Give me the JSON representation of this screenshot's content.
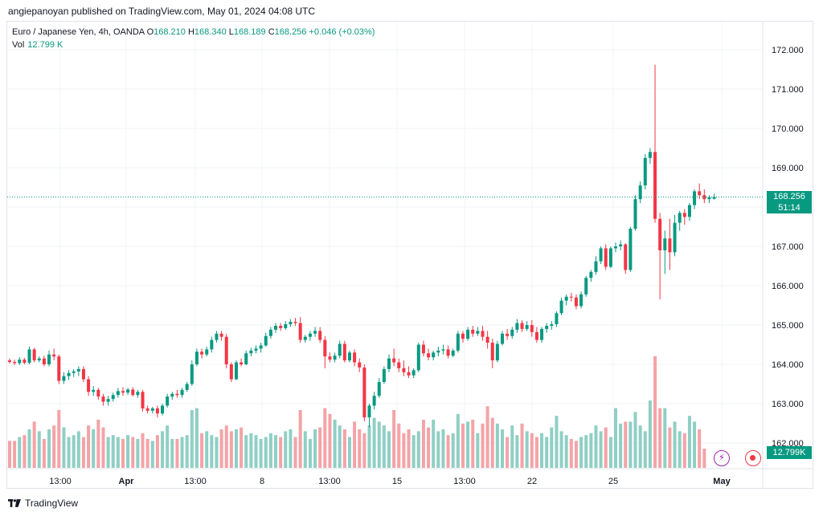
{
  "header": {
    "published": "angiepanoyan published on TradingView.com, May 01, 2024 04:08 UTC"
  },
  "legend": {
    "symbol": "Euro / Japanese Yen, 4h, OANDA",
    "o_label": "O",
    "o": "168.210",
    "h_label": "H",
    "h": "168.340",
    "l_label": "L",
    "l": "168.189",
    "c_label": "C",
    "c": "168.256",
    "change": "+0.046 (+0.03%)",
    "vol_label": "Vol",
    "vol": "12.799 K"
  },
  "price_axis": {
    "labels": [
      "172.000",
      "171.000",
      "170.000",
      "169.000",
      "168.000",
      "167.000",
      "166.000",
      "165.000",
      "164.000",
      "163.000",
      "162.000"
    ],
    "values": [
      172,
      171,
      170,
      169,
      168,
      167,
      166,
      165,
      164,
      163,
      162
    ]
  },
  "time_axis": {
    "labels": [
      "13:00",
      "Apr",
      "13:00",
      "8",
      "13:00",
      "15",
      "13:00",
      "22",
      "25",
      "May"
    ]
  },
  "badges": {
    "price": "168.256",
    "countdown": "51:14",
    "volume": "12.799K"
  },
  "colors": {
    "up": "#089981",
    "down": "#f23645",
    "vol_up": "#8fcfc4",
    "vol_down": "#f4a3a7",
    "grid": "#f0f3fa"
  },
  "footer": {
    "brand": "TradingView"
  },
  "icons": {
    "lightning": "lightning-icon",
    "record": "record-icon",
    "logo": "tradingview-logo-icon"
  },
  "chart_data": {
    "type": "candlestick",
    "title": "Euro / Japanese Yen, 4h, OANDA",
    "ylim": [
      161.6,
      172.5
    ],
    "last_price": 168.256,
    "candles": [
      [
        164.1,
        164.15,
        164.02,
        164.06
      ],
      [
        164.06,
        164.12,
        163.98,
        164.03
      ],
      [
        164.03,
        164.18,
        163.98,
        164.12
      ],
      [
        164.12,
        164.16,
        164.0,
        164.04
      ],
      [
        164.04,
        164.45,
        164.0,
        164.38
      ],
      [
        164.38,
        164.42,
        164.05,
        164.1
      ],
      [
        164.1,
        164.2,
        164.05,
        164.15
      ],
      [
        164.15,
        164.22,
        163.95,
        164.0
      ],
      [
        164.0,
        164.35,
        163.95,
        164.25
      ],
      [
        164.25,
        164.4,
        164.1,
        164.2
      ],
      [
        164.2,
        164.25,
        163.5,
        163.58
      ],
      [
        163.58,
        163.8,
        163.5,
        163.7
      ],
      [
        163.7,
        163.85,
        163.6,
        163.78
      ],
      [
        163.78,
        163.88,
        163.68,
        163.82
      ],
      [
        163.82,
        163.95,
        163.7,
        163.88
      ],
      [
        163.88,
        163.95,
        163.55,
        163.62
      ],
      [
        163.62,
        163.7,
        163.2,
        163.3
      ],
      [
        163.3,
        163.45,
        163.2,
        163.35
      ],
      [
        163.35,
        163.4,
        163.1,
        163.18
      ],
      [
        163.18,
        163.25,
        162.95,
        163.05
      ],
      [
        163.05,
        163.2,
        162.95,
        163.12
      ],
      [
        163.12,
        163.28,
        163.05,
        163.22
      ],
      [
        163.22,
        163.4,
        163.15,
        163.32
      ],
      [
        163.32,
        163.42,
        163.2,
        163.28
      ],
      [
        163.28,
        163.4,
        163.22,
        163.36
      ],
      [
        163.36,
        163.42,
        163.18,
        163.22
      ],
      [
        163.22,
        163.35,
        163.15,
        163.3
      ],
      [
        163.3,
        163.35,
        162.8,
        162.88
      ],
      [
        162.88,
        162.95,
        162.75,
        162.82
      ],
      [
        162.82,
        162.92,
        162.75,
        162.88
      ],
      [
        162.88,
        162.95,
        162.65,
        162.75
      ],
      [
        162.75,
        163.0,
        162.7,
        162.95
      ],
      [
        162.95,
        163.25,
        162.9,
        163.18
      ],
      [
        163.18,
        163.3,
        163.1,
        163.25
      ],
      [
        163.25,
        163.35,
        163.15,
        163.22
      ],
      [
        163.22,
        163.4,
        163.15,
        163.35
      ],
      [
        163.35,
        163.55,
        163.3,
        163.5
      ],
      [
        163.5,
        164.1,
        163.45,
        164.0
      ],
      [
        164.0,
        164.4,
        163.95,
        164.32
      ],
      [
        164.32,
        164.4,
        164.15,
        164.25
      ],
      [
        164.25,
        164.45,
        164.2,
        164.38
      ],
      [
        164.38,
        164.7,
        164.3,
        164.62
      ],
      [
        164.62,
        164.85,
        164.55,
        164.78
      ],
      [
        164.78,
        164.85,
        164.6,
        164.7
      ],
      [
        164.7,
        164.78,
        163.9,
        164.0
      ],
      [
        164.0,
        164.05,
        163.55,
        163.62
      ],
      [
        163.62,
        164.1,
        163.6,
        164.05
      ],
      [
        164.05,
        164.15,
        163.95,
        164.0
      ],
      [
        164.0,
        164.35,
        163.98,
        164.28
      ],
      [
        164.28,
        164.42,
        164.2,
        164.35
      ],
      [
        164.35,
        164.48,
        164.28,
        164.4
      ],
      [
        164.4,
        164.55,
        164.3,
        164.48
      ],
      [
        164.48,
        164.8,
        164.45,
        164.72
      ],
      [
        164.72,
        164.95,
        164.65,
        164.88
      ],
      [
        164.88,
        165.05,
        164.8,
        164.98
      ],
      [
        164.98,
        165.05,
        164.85,
        164.92
      ],
      [
        164.92,
        165.1,
        164.88,
        165.02
      ],
      [
        165.02,
        165.15,
        164.95,
        165.08
      ],
      [
        165.08,
        165.18,
        164.98,
        165.05
      ],
      [
        165.05,
        165.2,
        164.55,
        164.62
      ],
      [
        164.62,
        164.75,
        164.55,
        164.7
      ],
      [
        164.7,
        164.85,
        164.6,
        164.78
      ],
      [
        164.78,
        164.95,
        164.7,
        164.85
      ],
      [
        164.85,
        164.95,
        164.55,
        164.62
      ],
      [
        164.62,
        164.72,
        163.9,
        164.2
      ],
      [
        164.2,
        164.3,
        164.05,
        164.12
      ],
      [
        164.12,
        164.3,
        164.05,
        164.22
      ],
      [
        164.22,
        164.6,
        164.15,
        164.52
      ],
      [
        164.52,
        164.6,
        164.05,
        164.1
      ],
      [
        164.1,
        164.35,
        164.05,
        164.3
      ],
      [
        164.3,
        164.38,
        163.95,
        164.05
      ],
      [
        164.05,
        164.15,
        163.8,
        163.92
      ],
      [
        163.92,
        164.0,
        162.55,
        162.65
      ],
      [
        162.65,
        163.0,
        162.4,
        162.95
      ],
      [
        162.95,
        163.3,
        162.85,
        163.2
      ],
      [
        163.2,
        163.65,
        163.15,
        163.55
      ],
      [
        163.55,
        163.95,
        163.5,
        163.88
      ],
      [
        163.88,
        164.25,
        163.8,
        164.15
      ],
      [
        164.15,
        164.4,
        163.95,
        164.05
      ],
      [
        164.05,
        164.15,
        163.8,
        163.9
      ],
      [
        163.9,
        164.1,
        163.7,
        163.8
      ],
      [
        163.8,
        163.95,
        163.65,
        163.72
      ],
      [
        163.72,
        163.9,
        163.65,
        163.85
      ],
      [
        163.85,
        164.55,
        163.8,
        164.5
      ],
      [
        164.5,
        164.6,
        164.2,
        164.28
      ],
      [
        164.28,
        164.4,
        164.1,
        164.18
      ],
      [
        164.18,
        164.35,
        164.1,
        164.3
      ],
      [
        164.3,
        164.45,
        164.2,
        164.35
      ],
      [
        164.35,
        164.5,
        164.25,
        164.38
      ],
      [
        164.38,
        164.48,
        164.15,
        164.22
      ],
      [
        164.22,
        164.4,
        164.18,
        164.35
      ],
      [
        164.35,
        164.85,
        164.3,
        164.78
      ],
      [
        164.78,
        164.85,
        164.55,
        164.65
      ],
      [
        164.65,
        164.95,
        164.6,
        164.88
      ],
      [
        164.88,
        164.98,
        164.7,
        164.78
      ],
      [
        164.78,
        164.95,
        164.72,
        164.85
      ],
      [
        164.85,
        164.98,
        164.6,
        164.7
      ],
      [
        164.7,
        164.85,
        164.4,
        164.55
      ],
      [
        164.55,
        164.65,
        163.9,
        164.1
      ],
      [
        164.1,
        164.6,
        164.05,
        164.52
      ],
      [
        164.52,
        164.85,
        164.48,
        164.78
      ],
      [
        164.78,
        164.9,
        164.62,
        164.72
      ],
      [
        164.72,
        164.95,
        164.65,
        164.88
      ],
      [
        164.88,
        165.15,
        164.8,
        165.05
      ],
      [
        165.05,
        165.12,
        164.82,
        164.9
      ],
      [
        164.9,
        165.1,
        164.85,
        165.0
      ],
      [
        165.0,
        165.12,
        164.7,
        164.82
      ],
      [
        164.82,
        164.95,
        164.55,
        164.62
      ],
      [
        164.62,
        164.95,
        164.55,
        164.9
      ],
      [
        164.9,
        165.05,
        164.8,
        164.98
      ],
      [
        164.98,
        165.1,
        164.88,
        165.02
      ],
      [
        165.02,
        165.35,
        164.95,
        165.3
      ],
      [
        165.3,
        165.7,
        165.25,
        165.62
      ],
      [
        165.62,
        165.78,
        165.5,
        165.72
      ],
      [
        165.72,
        165.82,
        165.6,
        165.7
      ],
      [
        165.7,
        165.78,
        165.4,
        165.48
      ],
      [
        165.48,
        165.85,
        165.42,
        165.78
      ],
      [
        165.78,
        166.25,
        165.72,
        166.2
      ],
      [
        166.2,
        166.4,
        166.1,
        166.35
      ],
      [
        166.35,
        166.75,
        166.28,
        166.62
      ],
      [
        166.62,
        167.0,
        166.55,
        166.95
      ],
      [
        166.95,
        167.05,
        166.4,
        166.48
      ],
      [
        166.48,
        167.0,
        166.45,
        166.95
      ],
      [
        166.95,
        167.1,
        166.85,
        167.0
      ],
      [
        167.0,
        167.15,
        166.9,
        167.05
      ],
      [
        167.05,
        167.08,
        166.3,
        166.4
      ],
      [
        166.4,
        167.5,
        166.35,
        167.45
      ],
      [
        167.45,
        168.3,
        167.4,
        168.2
      ],
      [
        168.2,
        168.65,
        168.1,
        168.55
      ],
      [
        168.55,
        169.35,
        168.45,
        169.25
      ],
      [
        169.25,
        169.5,
        169.1,
        169.4
      ],
      [
        169.4,
        171.62,
        167.6,
        167.7
      ],
      [
        167.7,
        167.85,
        165.65,
        166.9
      ],
      [
        166.9,
        167.4,
        166.3,
        167.2
      ],
      [
        167.2,
        167.7,
        166.4,
        166.85
      ],
      [
        166.85,
        167.8,
        166.75,
        167.6
      ],
      [
        167.6,
        167.9,
        167.4,
        167.85
      ],
      [
        167.85,
        167.95,
        167.55,
        167.75
      ],
      [
        167.75,
        168.1,
        167.65,
        168.05
      ],
      [
        168.05,
        168.45,
        167.95,
        168.4
      ],
      [
        168.4,
        168.6,
        168.2,
        168.3
      ],
      [
        168.3,
        168.45,
        168.1,
        168.2
      ],
      [
        168.2,
        168.3,
        168.1,
        168.25
      ],
      [
        168.21,
        168.34,
        168.19,
        168.256
      ]
    ],
    "volume": [
      14,
      14,
      16,
      17,
      20,
      24,
      19,
      15,
      20,
      22,
      30,
      21,
      16,
      17,
      19,
      16,
      22,
      20,
      25,
      21,
      16,
      17,
      16,
      15,
      17,
      16,
      15,
      18,
      15,
      14,
      17,
      19,
      22,
      15,
      15,
      16,
      17,
      30,
      31,
      18,
      19,
      17,
      16,
      20,
      22,
      19,
      20,
      21,
      17,
      18,
      17,
      15,
      16,
      18,
      17,
      16,
      19,
      20,
      16,
      30,
      19,
      15,
      20,
      21,
      31,
      28,
      25,
      22,
      20,
      16,
      24,
      20,
      18,
      22,
      26,
      24,
      22,
      19,
      30,
      23,
      18,
      20,
      17,
      19,
      25,
      21,
      25,
      19,
      20,
      17,
      18,
      28,
      23,
      24,
      25,
      18,
      23,
      32,
      26,
      23,
      20,
      16,
      22,
      17,
      23,
      19,
      18,
      16,
      18,
      16,
      21,
      27,
      19,
      17,
      15,
      14,
      16,
      17,
      18,
      22,
      19,
      21,
      16,
      31,
      23,
      24,
      24,
      29,
      22,
      19,
      35,
      58,
      31,
      31,
      21,
      24,
      19,
      18,
      27,
      24,
      20,
      10
    ]
  }
}
